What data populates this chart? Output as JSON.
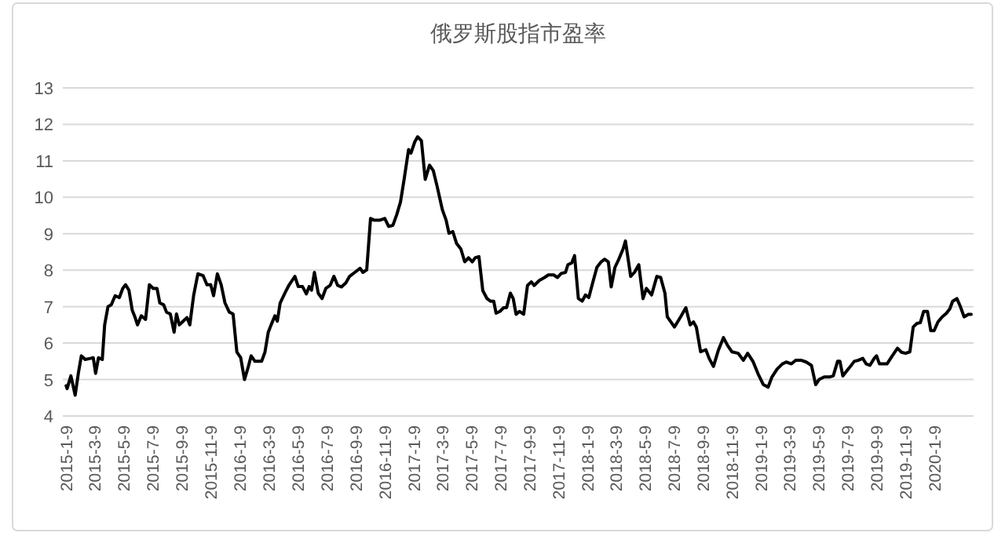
{
  "chart_data": {
    "type": "line",
    "title": "俄罗斯股指市盈率",
    "x": [
      "2015-01-09",
      "2015-01-11",
      "2015-01-19",
      "2015-01-28",
      "2015-02-04",
      "2015-02-10",
      "2015-02-18",
      "2015-03-01",
      "2015-03-07",
      "2015-03-12",
      "2015-03-18",
      "2015-03-26",
      "2015-03-31",
      "2015-04-07",
      "2015-04-14",
      "2015-04-22",
      "2015-05-01",
      "2015-05-08",
      "2015-05-14",
      "2015-05-21",
      "2015-05-28",
      "2015-06-03",
      "2015-06-08",
      "2015-06-16",
      "2015-06-25",
      "2015-07-03",
      "2015-07-11",
      "2015-07-19",
      "2015-07-25",
      "2015-08-02",
      "2015-08-08",
      "2015-08-16",
      "2015-08-24",
      "2015-08-29",
      "2015-09-04",
      "2015-09-12",
      "2015-09-20",
      "2015-09-26",
      "2015-10-04",
      "2015-10-13",
      "2015-10-24",
      "2015-11-01",
      "2015-11-09",
      "2015-11-15",
      "2015-11-23",
      "2015-12-01",
      "2015-12-09",
      "2015-12-18",
      "2015-12-26",
      "2016-01-03",
      "2016-01-11",
      "2016-01-19",
      "2016-01-27",
      "2016-02-02",
      "2016-02-10",
      "2016-02-24",
      "2016-03-02",
      "2016-03-09",
      "2016-03-15",
      "2016-03-23",
      "2016-03-28",
      "2016-04-03",
      "2016-04-14",
      "2016-04-22",
      "2016-05-04",
      "2016-05-11",
      "2016-05-20",
      "2016-05-28",
      "2016-06-03",
      "2016-06-08",
      "2016-06-14",
      "2016-06-22",
      "2016-06-30",
      "2016-07-08",
      "2016-07-17",
      "2016-07-25",
      "2016-08-02",
      "2016-08-10",
      "2016-08-19",
      "2016-08-27",
      "2016-09-07",
      "2016-09-18",
      "2016-09-24",
      "2016-10-02",
      "2016-10-10",
      "2016-10-18",
      "2016-10-29",
      "2016-11-09",
      "2016-11-17",
      "2016-11-26",
      "2016-12-04",
      "2016-12-12",
      "2016-12-20",
      "2016-12-29",
      "2017-01-03",
      "2017-01-11",
      "2017-01-17",
      "2017-01-25",
      "2017-02-02",
      "2017-02-11",
      "2017-02-19",
      "2017-02-27",
      "2017-03-10",
      "2017-03-18",
      "2017-03-24",
      "2017-04-01",
      "2017-04-09",
      "2017-04-18",
      "2017-04-26",
      "2017-05-04",
      "2017-05-12",
      "2017-05-18",
      "2017-05-26",
      "2017-06-03",
      "2017-06-12",
      "2017-06-19",
      "2017-06-26",
      "2017-07-01",
      "2017-07-09",
      "2017-07-17",
      "2017-07-23",
      "2017-07-31",
      "2017-08-06",
      "2017-08-12",
      "2017-08-19",
      "2017-08-28",
      "2017-09-05",
      "2017-09-13",
      "2017-09-19",
      "2017-09-30",
      "2017-10-11",
      "2017-10-19",
      "2017-10-30",
      "2017-11-07",
      "2017-11-15",
      "2017-11-24",
      "2017-11-29",
      "2017-12-07",
      "2017-12-13",
      "2017-12-21",
      "2017-12-29",
      "2018-01-05",
      "2018-01-12",
      "2018-01-20",
      "2018-01-29",
      "2018-02-07",
      "2018-02-14",
      "2018-02-22",
      "2018-02-28",
      "2018-03-08",
      "2018-03-16",
      "2018-03-25",
      "2018-03-30",
      "2018-04-10",
      "2018-04-18",
      "2018-04-27",
      "2018-05-06",
      "2018-05-13",
      "2018-05-24",
      "2018-06-04",
      "2018-06-12",
      "2018-06-21",
      "2018-06-26",
      "2018-07-11",
      "2018-07-24",
      "2018-08-04",
      "2018-08-13",
      "2018-08-20",
      "2018-08-26",
      "2018-09-04",
      "2018-09-15",
      "2018-09-22",
      "2018-10-01",
      "2018-10-11",
      "2018-10-22",
      "2018-10-31",
      "2018-11-09",
      "2018-11-22",
      "2018-12-03",
      "2018-12-12",
      "2018-12-23",
      "2019-01-03",
      "2019-01-14",
      "2019-01-24",
      "2019-02-01",
      "2019-02-12",
      "2019-02-23",
      "2019-03-03",
      "2019-03-14",
      "2019-03-23",
      "2019-04-03",
      "2019-04-14",
      "2019-04-25",
      "2019-05-04",
      "2019-05-11",
      "2019-05-22",
      "2019-06-02",
      "2019-06-10",
      "2019-06-19",
      "2019-06-24",
      "2019-06-30",
      "2019-07-09",
      "2019-07-16",
      "2019-07-24",
      "2019-08-02",
      "2019-08-11",
      "2019-08-18",
      "2019-08-26",
      "2019-09-04",
      "2019-09-09",
      "2019-09-15",
      "2019-09-24",
      "2019-10-01",
      "2019-10-12",
      "2019-10-23",
      "2019-10-31",
      "2019-11-09",
      "2019-11-18",
      "2019-11-25",
      "2019-12-03",
      "2019-12-10",
      "2019-12-17",
      "2019-12-25",
      "2020-01-01",
      "2020-01-08",
      "2020-01-16",
      "2020-01-25",
      "2020-02-03",
      "2020-02-10",
      "2020-02-16",
      "2020-02-25",
      "2020-03-03",
      "2020-03-11",
      "2020-03-20",
      "2020-03-26"
    ],
    "series": [
      {
        "color": "#000000",
        "values": [
          4.83,
          4.75,
          5.1,
          4.57,
          5.2,
          5.65,
          5.55,
          5.58,
          5.6,
          5.17,
          5.6,
          5.55,
          6.5,
          7.0,
          7.05,
          7.3,
          7.25,
          7.5,
          7.6,
          7.45,
          6.9,
          6.7,
          6.5,
          6.75,
          6.65,
          7.6,
          7.5,
          7.5,
          7.1,
          7.05,
          6.85,
          6.8,
          6.3,
          6.8,
          6.5,
          6.6,
          6.7,
          6.5,
          7.3,
          7.9,
          7.85,
          7.6,
          7.6,
          7.3,
          7.9,
          7.6,
          7.1,
          6.85,
          6.8,
          5.75,
          5.6,
          5.0,
          5.35,
          5.65,
          5.5,
          5.5,
          5.75,
          6.3,
          6.5,
          6.75,
          6.6,
          7.1,
          7.4,
          7.6,
          7.83,
          7.55,
          7.55,
          7.35,
          7.55,
          7.45,
          7.94,
          7.37,
          7.22,
          7.5,
          7.58,
          7.83,
          7.58,
          7.54,
          7.65,
          7.83,
          7.94,
          8.05,
          7.94,
          8.01,
          9.42,
          9.37,
          9.37,
          9.42,
          9.2,
          9.23,
          9.52,
          9.87,
          10.52,
          11.31,
          11.21,
          11.52,
          11.66,
          11.55,
          10.49,
          10.88,
          10.73,
          10.3,
          9.66,
          9.37,
          9.01,
          9.06,
          8.73,
          8.58,
          8.23,
          8.34,
          8.23,
          8.34,
          8.37,
          7.44,
          7.22,
          7.15,
          7.15,
          6.82,
          6.87,
          6.97,
          6.97,
          7.37,
          7.22,
          6.79,
          6.87,
          6.79,
          7.58,
          7.68,
          7.58,
          7.72,
          7.8,
          7.87,
          7.87,
          7.8,
          7.91,
          7.94,
          8.15,
          8.2,
          8.4,
          7.22,
          7.15,
          7.32,
          7.25,
          7.65,
          8.08,
          8.23,
          8.3,
          8.23,
          7.54,
          8.08,
          8.3,
          8.58,
          8.8,
          7.83,
          7.94,
          8.15,
          7.22,
          7.5,
          7.32,
          7.83,
          7.8,
          7.37,
          6.72,
          6.44,
          6.72,
          6.97,
          6.5,
          6.58,
          6.44,
          5.76,
          5.82,
          5.58,
          5.36,
          5.79,
          6.15,
          5.93,
          5.76,
          5.72,
          5.53,
          5.72,
          5.5,
          5.15,
          4.86,
          4.79,
          5.07,
          5.29,
          5.43,
          5.48,
          5.43,
          5.53,
          5.53,
          5.48,
          5.39,
          4.86,
          5.0,
          5.07,
          5.07,
          5.1,
          5.5,
          5.5,
          5.1,
          5.25,
          5.36,
          5.5,
          5.53,
          5.58,
          5.43,
          5.39,
          5.58,
          5.65,
          5.43,
          5.43,
          5.43,
          5.65,
          5.86,
          5.75,
          5.72,
          5.76,
          6.44,
          6.54,
          6.56,
          6.87,
          6.87,
          6.34,
          6.34,
          6.58,
          6.72,
          6.82,
          6.94,
          7.15,
          7.22,
          7.01,
          6.72,
          6.79,
          6.79
        ]
      }
    ],
    "xlim": [
      "2015-01-02",
      "2020-03-31"
    ],
    "xticks": [
      {
        "value": "2015-01-09",
        "label": "2015-1-9"
      },
      {
        "value": "2015-03-09",
        "label": "2015-3-9"
      },
      {
        "value": "2015-05-09",
        "label": "2015-5-9"
      },
      {
        "value": "2015-07-09",
        "label": "2015-7-9"
      },
      {
        "value": "2015-09-09",
        "label": "2015-9-9"
      },
      {
        "value": "2015-11-09",
        "label": "2015-11-9"
      },
      {
        "value": "2016-01-09",
        "label": "2016-1-9"
      },
      {
        "value": "2016-03-09",
        "label": "2016-3-9"
      },
      {
        "value": "2016-05-09",
        "label": "2016-5-9"
      },
      {
        "value": "2016-07-09",
        "label": "2016-7-9"
      },
      {
        "value": "2016-09-09",
        "label": "2016-9-9"
      },
      {
        "value": "2016-11-09",
        "label": "2016-11-9"
      },
      {
        "value": "2017-01-09",
        "label": "2017-1-9"
      },
      {
        "value": "2017-03-09",
        "label": "2017-3-9"
      },
      {
        "value": "2017-05-09",
        "label": "2017-5-9"
      },
      {
        "value": "2017-07-09",
        "label": "2017-7-9"
      },
      {
        "value": "2017-09-09",
        "label": "2017-9-9"
      },
      {
        "value": "2017-11-09",
        "label": "2017-11-9"
      },
      {
        "value": "2018-01-09",
        "label": "2018-1-9"
      },
      {
        "value": "2018-03-09",
        "label": "2018-3-9"
      },
      {
        "value": "2018-05-09",
        "label": "2018-5-9"
      },
      {
        "value": "2018-07-09",
        "label": "2018-7-9"
      },
      {
        "value": "2018-09-09",
        "label": "2018-9-9"
      },
      {
        "value": "2018-11-09",
        "label": "2018-11-9"
      },
      {
        "value": "2019-01-09",
        "label": "2019-1-9"
      },
      {
        "value": "2019-03-09",
        "label": "2019-3-9"
      },
      {
        "value": "2019-05-09",
        "label": "2019-5-9"
      },
      {
        "value": "2019-07-09",
        "label": "2019-7-9"
      },
      {
        "value": "2019-09-09",
        "label": "2019-9-9"
      },
      {
        "value": "2019-11-09",
        "label": "2019-11-9"
      },
      {
        "value": "2020-01-09",
        "label": "2020-1-9"
      }
    ],
    "ylim": [
      4,
      13
    ],
    "yticks": [
      4,
      5,
      6,
      7,
      8,
      9,
      10,
      11,
      12,
      13
    ],
    "grid": "y"
  }
}
